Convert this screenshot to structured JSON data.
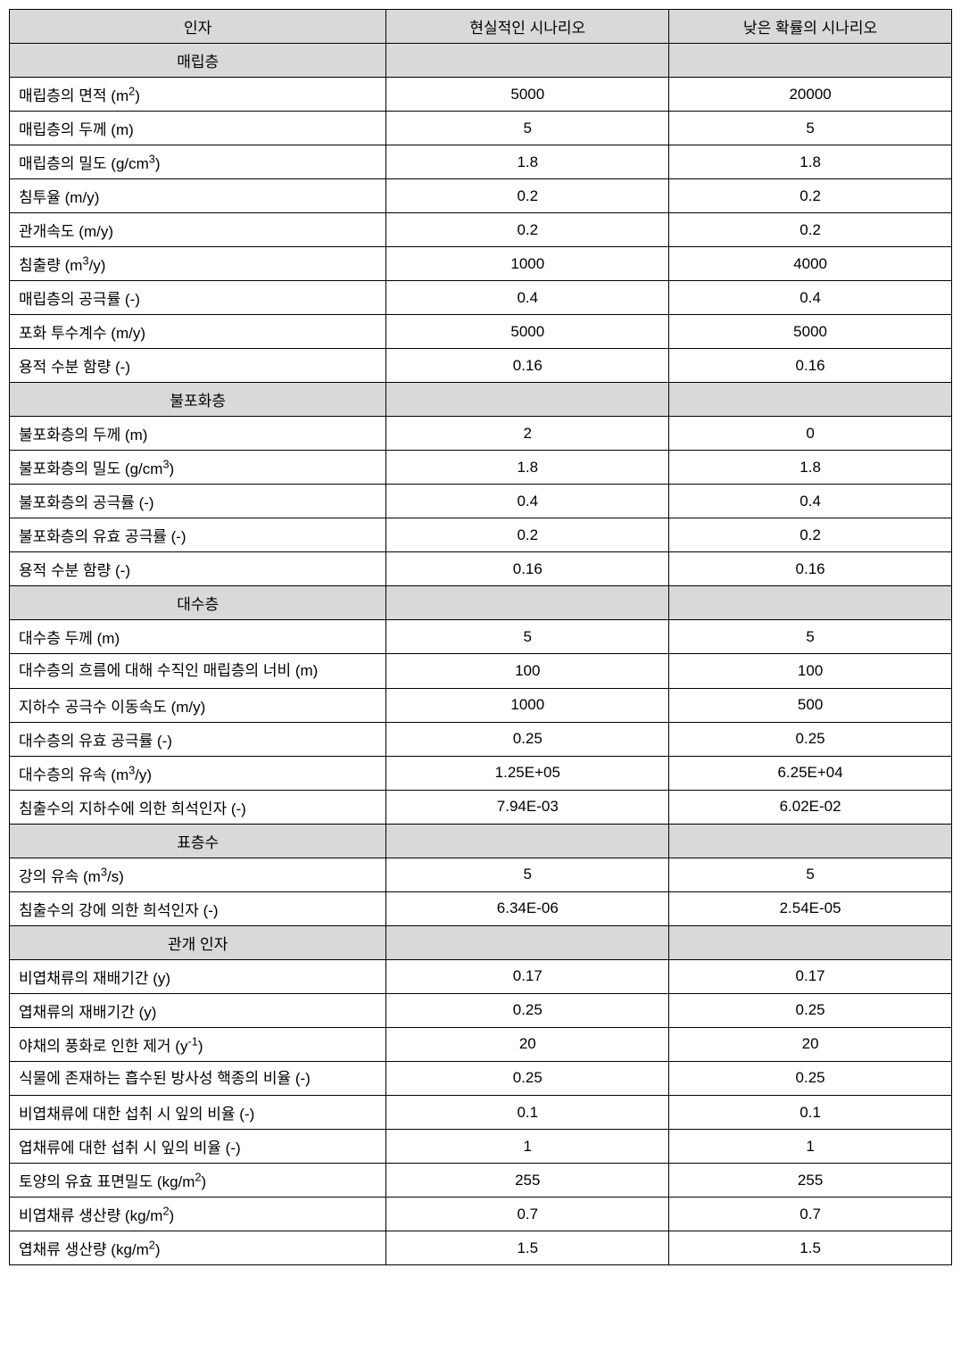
{
  "table": {
    "columns": [
      {
        "label": "인자"
      },
      {
        "label": "현실적인 시나리오"
      },
      {
        "label": "낮은 확률의 시나리오"
      }
    ],
    "colors": {
      "header_bg": "#d9d9d9",
      "border": "#000000",
      "background": "#ffffff",
      "text": "#000000"
    },
    "font": {
      "family": "Malgun Gothic",
      "size_pt": 13
    },
    "sections": [
      {
        "title": "매립층",
        "rows": [
          {
            "param_html": "매립층의 면적 (m<sup>2</sup>)",
            "param": "매립층의 면적 (m2)",
            "v1": "5000",
            "v2": "20000"
          },
          {
            "param_html": "매립층의 두께 (m)",
            "param": "매립층의 두께 (m)",
            "v1": "5",
            "v2": "5"
          },
          {
            "param_html": "매립층의 밀도 (g/cm<sup>3</sup>)",
            "param": "매립층의 밀도 (g/cm3)",
            "v1": "1.8",
            "v2": "1.8"
          },
          {
            "param_html": "침투율 (m/y)",
            "param": "침투율 (m/y)",
            "v1": "0.2",
            "v2": "0.2"
          },
          {
            "param_html": "관개속도 (m/y)",
            "param": "관개속도 (m/y)",
            "v1": "0.2",
            "v2": "0.2"
          },
          {
            "param_html": "침출량 (m<sup>3</sup>/y)",
            "param": "침출량 (m3/y)",
            "v1": "1000",
            "v2": "4000"
          },
          {
            "param_html": "매립층의 공극률 (-)",
            "param": "매립층의 공극률 (-)",
            "v1": "0.4",
            "v2": "0.4"
          },
          {
            "param_html": "포화 투수계수 (m/y)",
            "param": "포화 투수계수 (m/y)",
            "v1": "5000",
            "v2": "5000"
          },
          {
            "param_html": "용적 수분 함량 (-)",
            "param": "용적 수분 함량 (-)",
            "v1": "0.16",
            "v2": "0.16"
          }
        ]
      },
      {
        "title": "불포화층",
        "rows": [
          {
            "param_html": "불포화층의 두께 (m)",
            "param": "불포화층의 두께 (m)",
            "v1": "2",
            "v2": "0"
          },
          {
            "param_html": "불포화층의 밀도 (g/cm<sup>3</sup>)",
            "param": "불포화층의 밀도 (g/cm3)",
            "v1": "1.8",
            "v2": "1.8"
          },
          {
            "param_html": "불포화층의 공극률 (-)",
            "param": "불포화층의 공극률 (-)",
            "v1": "0.4",
            "v2": "0.4"
          },
          {
            "param_html": "불포화층의 유효 공극률 (-)",
            "param": "불포화층의 유효 공극률 (-)",
            "v1": "0.2",
            "v2": "0.2"
          },
          {
            "param_html": "용적 수분 함량 (-)",
            "param": "용적 수분 함량 (-)",
            "v1": "0.16",
            "v2": "0.16"
          }
        ]
      },
      {
        "title": "대수층",
        "rows": [
          {
            "param_html": "대수층 두께 (m)",
            "param": "대수층 두께 (m)",
            "v1": "5",
            "v2": "5"
          },
          {
            "param_html": "대수층의 흐름에 대해 수직인 매립층의 너비 (m)",
            "param": "대수층의 흐름에 대해 수직인 매립층의 너비 (m)",
            "v1": "100",
            "v2": "100",
            "multiline": true
          },
          {
            "param_html": "지하수 공극수 이동속도 (m/y)",
            "param": "지하수 공극수 이동속도 (m/y)",
            "v1": "1000",
            "v2": "500"
          },
          {
            "param_html": "대수층의 유효 공극률 (-)",
            "param": "대수층의 유효 공극률 (-)",
            "v1": "0.25",
            "v2": "0.25"
          },
          {
            "param_html": "대수층의 유속 (m<sup>3</sup>/y)",
            "param": "대수층의 유속 (m3/y)",
            "v1": "1.25E+05",
            "v2": "6.25E+04"
          },
          {
            "param_html": "침출수의 지하수에 의한 희석인자 (-)",
            "param": "침출수의 지하수에 의한 희석인자 (-)",
            "v1": "7.94E-03",
            "v2": "6.02E-02"
          }
        ]
      },
      {
        "title": "표층수",
        "rows": [
          {
            "param_html": "강의 유속 (m<sup>3</sup>/s)",
            "param": "강의 유속 (m3/s)",
            "v1": "5",
            "v2": "5"
          },
          {
            "param_html": "침출수의 강에 의한 희석인자 (-)",
            "param": "침출수의 강에 의한 희석인자 (-)",
            "v1": "6.34E-06",
            "v2": "2.54E-05"
          }
        ]
      },
      {
        "title": "관개 인자",
        "rows": [
          {
            "param_html": "비엽채류의 재배기간 (y)",
            "param": "비엽채류의 재배기간 (y)",
            "v1": "0.17",
            "v2": "0.17"
          },
          {
            "param_html": "엽채류의 재배기간 (y)",
            "param": "엽채류의 재배기간 (y)",
            "v1": "0.25",
            "v2": "0.25"
          },
          {
            "param_html": "야채의 풍화로 인한 제거 (y<sup>-1</sup>)",
            "param": "야채의 풍화로 인한 제거 (y-1)",
            "v1": "20",
            "v2": "20"
          },
          {
            "param_html": "식물에 존재하는 흡수된 방사성 핵종의 비율 (-)",
            "param": "식물에 존재하는 흡수된 방사성 핵종의 비율 (-)",
            "v1": "0.25",
            "v2": "0.25",
            "multiline": true
          },
          {
            "param_html": "비엽채류에 대한 섭취 시 잎의 비율 (-)",
            "param": "비엽채류에 대한 섭취 시 잎의 비율 (-)",
            "v1": "0.1",
            "v2": "0.1"
          },
          {
            "param_html": "엽채류에 대한 섭취 시 잎의 비율 (-)",
            "param": "엽채류에 대한 섭취 시 잎의 비율 (-)",
            "v1": "1",
            "v2": "1"
          },
          {
            "param_html": "토양의 유효 표면밀도 (kg/m<sup>2</sup>)",
            "param": "토양의 유효 표면밀도 (kg/m2)",
            "v1": "255",
            "v2": "255"
          },
          {
            "param_html": "비엽채류 생산량 (kg/m<sup>2</sup>)",
            "param": "비엽채류 생산량 (kg/m2)",
            "v1": "0.7",
            "v2": "0.7"
          },
          {
            "param_html": "엽채류 생산량 (kg/m<sup>2</sup>)",
            "param": "엽채류 생산량 (kg/m2)",
            "v1": "1.5",
            "v2": "1.5"
          }
        ]
      }
    ]
  }
}
